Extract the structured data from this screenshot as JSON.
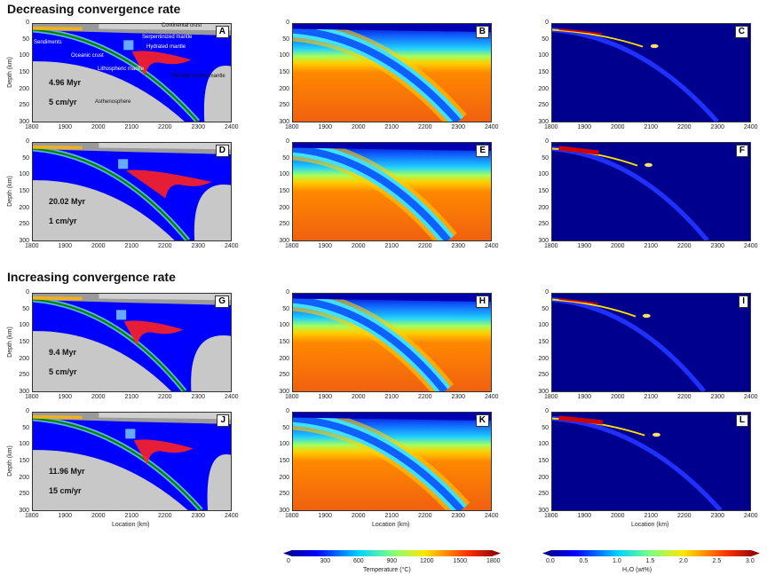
{
  "sections": {
    "decreasing": "Decreasing convergence rate",
    "increasing": "Increasing convergence rate"
  },
  "axes": {
    "xlabel": "Location (km)",
    "ylabel": "Depth (km)",
    "xticks": [
      1800,
      1900,
      2000,
      2100,
      2200,
      2300,
      2400
    ],
    "yticks": [
      0,
      50,
      100,
      150,
      200,
      250,
      300
    ]
  },
  "annotations": {
    "continental": "Continental crust",
    "sediments": "Sendiments",
    "serpentinized": "Serpentinized mantle",
    "hydrated": "Hydrated mantle",
    "oceanic": "Oceanic crust",
    "lithospheric": "Lithospheric mantle",
    "molten": "Partially molten mantle",
    "asthenosphere": "Asthenosphere"
  },
  "rows": [
    {
      "time": "4.96 Myr",
      "rate": "5 cm/yr",
      "labels": [
        "A",
        "B",
        "C"
      ]
    },
    {
      "time": "20.02 Myr",
      "rate": "1 cm/yr",
      "labels": [
        "D",
        "E",
        "F"
      ]
    },
    {
      "time": "9.4 Myr",
      "rate": "5 cm/yr",
      "labels": [
        "G",
        "H",
        "I"
      ]
    },
    {
      "time": "11.96 Myr",
      "rate": "15 cm/yr",
      "labels": [
        "J",
        "K",
        "L"
      ]
    }
  ],
  "colorbars": {
    "temperature": {
      "label": "Temperature (°C)",
      "ticks": [
        "0",
        "300",
        "600",
        "900",
        "1200",
        "1500",
        "1800"
      ]
    },
    "water": {
      "label": "H₂O (wt%)",
      "ticks": [
        "0.0",
        "0.5",
        "1.0",
        "1.5",
        "2.0",
        "2.5",
        "3.0"
      ]
    }
  },
  "chart_data": {
    "type": "heatmap",
    "xlabel": "Location (km)",
    "ylabel": "Depth (km)",
    "xlim": [
      1800,
      2400
    ],
    "ylim": [
      300,
      0
    ],
    "panels": [
      "A",
      "B",
      "C",
      "D",
      "E",
      "F",
      "G",
      "H",
      "I",
      "J",
      "K",
      "L"
    ],
    "slab_tip_x_km": [
      2300,
      2270,
      2260,
      2310
    ],
    "temperature_range": [
      0,
      1800
    ],
    "water_range": [
      0,
      3.0
    ]
  }
}
